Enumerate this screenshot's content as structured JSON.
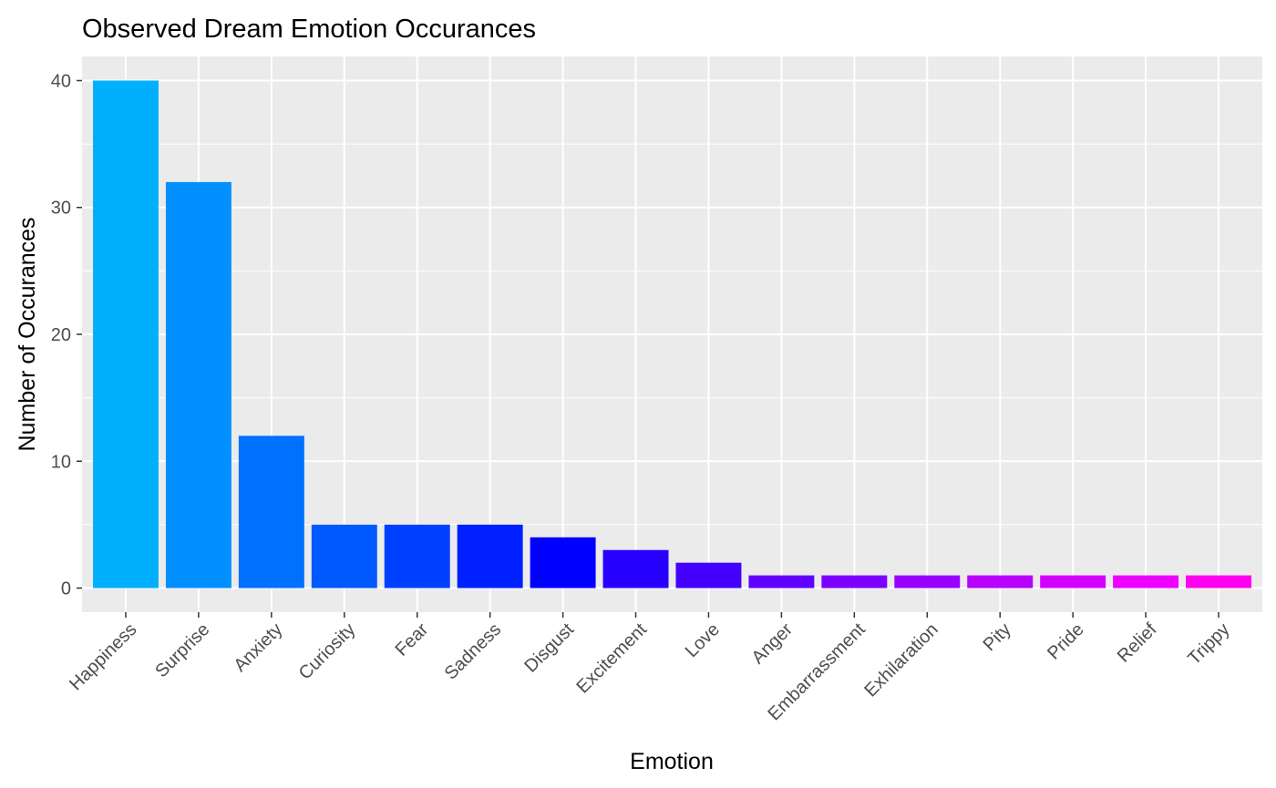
{
  "chart_data": {
    "type": "bar",
    "title": "Observed Dream Emotion Occurances",
    "xlabel": "Emotion",
    "ylabel": "Number of Occurances",
    "categories": [
      "Happiness",
      "Surprise",
      "Anxiety",
      "Curiosity",
      "Fear",
      "Sadness",
      "Disgust",
      "Excitement",
      "Love",
      "Anger",
      "Embarrassment",
      "Exhilaration",
      "Pity",
      "Pride",
      "Relief",
      "Trippy"
    ],
    "values": [
      40,
      32,
      12,
      5,
      5,
      5,
      4,
      3,
      2,
      1,
      1,
      1,
      1,
      1,
      1,
      1
    ],
    "bar_colors": [
      "#00B0FF",
      "#0090FF",
      "#0070FF",
      "#0058FF",
      "#0040FF",
      "#0020FF",
      "#0000FF",
      "#2800FF",
      "#4400FF",
      "#6000FF",
      "#7C00FF",
      "#9A00FF",
      "#B800FF",
      "#D400FF",
      "#EE00FF",
      "#FF00EE"
    ],
    "yticks": [
      0,
      10,
      20,
      30,
      40
    ],
    "ylim": [
      -1.9,
      41.9
    ],
    "grid": true,
    "panel_background": "#EBEBEB",
    "grid_color": "#FFFFFF",
    "legend": "none"
  }
}
